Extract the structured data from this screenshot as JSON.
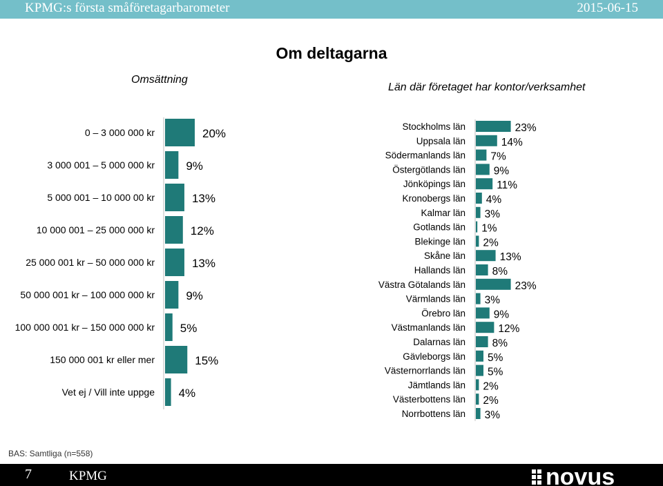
{
  "header": {
    "title": "KPMG:s första småföretagarbarometer",
    "date": "2015-06-15",
    "background_color": "#74bfc9"
  },
  "main_title": "Om deltagarna",
  "footer": {
    "base_note": "BAS: Samtliga (n=558)",
    "page_number": "7",
    "brand": "KPMG",
    "logo": "novus-logo"
  },
  "chart_data": [
    {
      "type": "bar",
      "orientation": "horizontal",
      "title": "Omsättning",
      "color": "#1f7a78",
      "categories": [
        "0 – 3 000 000 kr",
        "3 000 001 – 5 000 000 kr",
        "5 000 001 – 10 000 00 kr",
        "10 000 001 – 25 000 000 kr",
        "25 000 001 kr – 50 000 000 kr",
        "50 000 001 kr – 100 000 000 kr",
        "100 000 001 kr – 150 000 000 kr",
        "150 000 001 kr eller mer",
        "Vet ej / Vill inte uppge"
      ],
      "values": [
        20,
        9,
        13,
        12,
        13,
        9,
        5,
        15,
        4
      ],
      "value_labels": [
        "20%",
        "9%",
        "13%",
        "12%",
        "13%",
        "9%",
        "5%",
        "15%",
        "4%"
      ],
      "unit": "%"
    },
    {
      "type": "bar",
      "orientation": "horizontal",
      "title": "Län där företaget har kontor/verksamhet",
      "color": "#1f7a78",
      "categories": [
        "Stockholms län",
        "Uppsala län",
        "Södermanlands län",
        "Östergötlands län",
        "Jönköpings län",
        "Kronobergs län",
        "Kalmar län",
        "Gotlands län",
        "Blekinge län",
        "Skåne län",
        "Hallands län",
        "Västra Götalands län",
        "Värmlands län",
        "Örebro län",
        "Västmanlands län",
        "Dalarnas län",
        "Gävleborgs län",
        "Västernorrlands län",
        "Jämtlands län",
        "Västerbottens län",
        "Norrbottens län"
      ],
      "values": [
        23,
        14,
        7,
        9,
        11,
        4,
        3,
        1,
        2,
        13,
        8,
        23,
        3,
        9,
        12,
        8,
        5,
        5,
        2,
        2,
        3
      ],
      "value_labels": [
        "23%",
        "14%",
        "7%",
        "9%",
        "11%",
        "4%",
        "3%",
        "1%",
        "2%",
        "13%",
        "8%",
        "23%",
        "3%",
        "9%",
        "12%",
        "8%",
        "5%",
        "5%",
        "2%",
        "2%",
        "3%"
      ],
      "unit": "%"
    }
  ]
}
